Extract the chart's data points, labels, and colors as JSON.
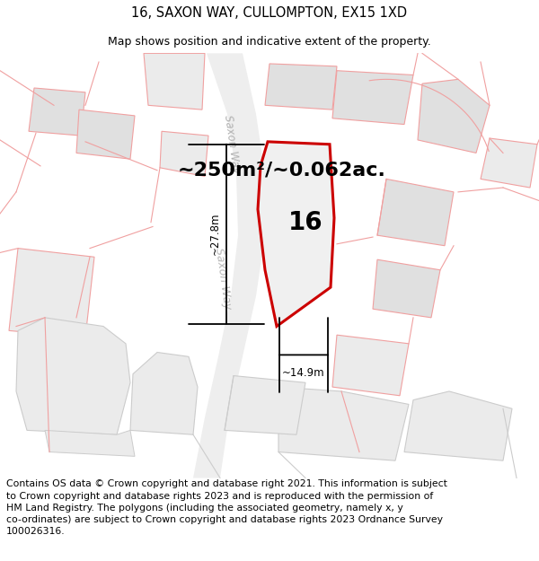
{
  "title": "16, SAXON WAY, CULLOMPTON, EX15 1XD",
  "subtitle": "Map shows position and indicative extent of the property.",
  "footer": "Contains OS data © Crown copyright and database right 2021. This information is subject\nto Crown copyright and database rights 2023 and is reproduced with the permission of\nHM Land Registry. The polygons (including the associated geometry, namely x, y\nco-ordinates) are subject to Crown copyright and database rights 2023 Ordnance Survey\n100026316.",
  "area_label": "~250m²/~0.062ac.",
  "width_label": "~14.9m",
  "height_label": "~27.8m",
  "number_label": "16",
  "bg_color": "#ffffff",
  "map_bg": "#ffffff",
  "title_fontsize": 10.5,
  "subtitle_fontsize": 9,
  "footer_fontsize": 7.8,
  "light_red": "#f0a0a0",
  "plot_red": "#cc0000",
  "gray_fill": "#e0e0e0",
  "light_gray_fill": "#ebebeb"
}
